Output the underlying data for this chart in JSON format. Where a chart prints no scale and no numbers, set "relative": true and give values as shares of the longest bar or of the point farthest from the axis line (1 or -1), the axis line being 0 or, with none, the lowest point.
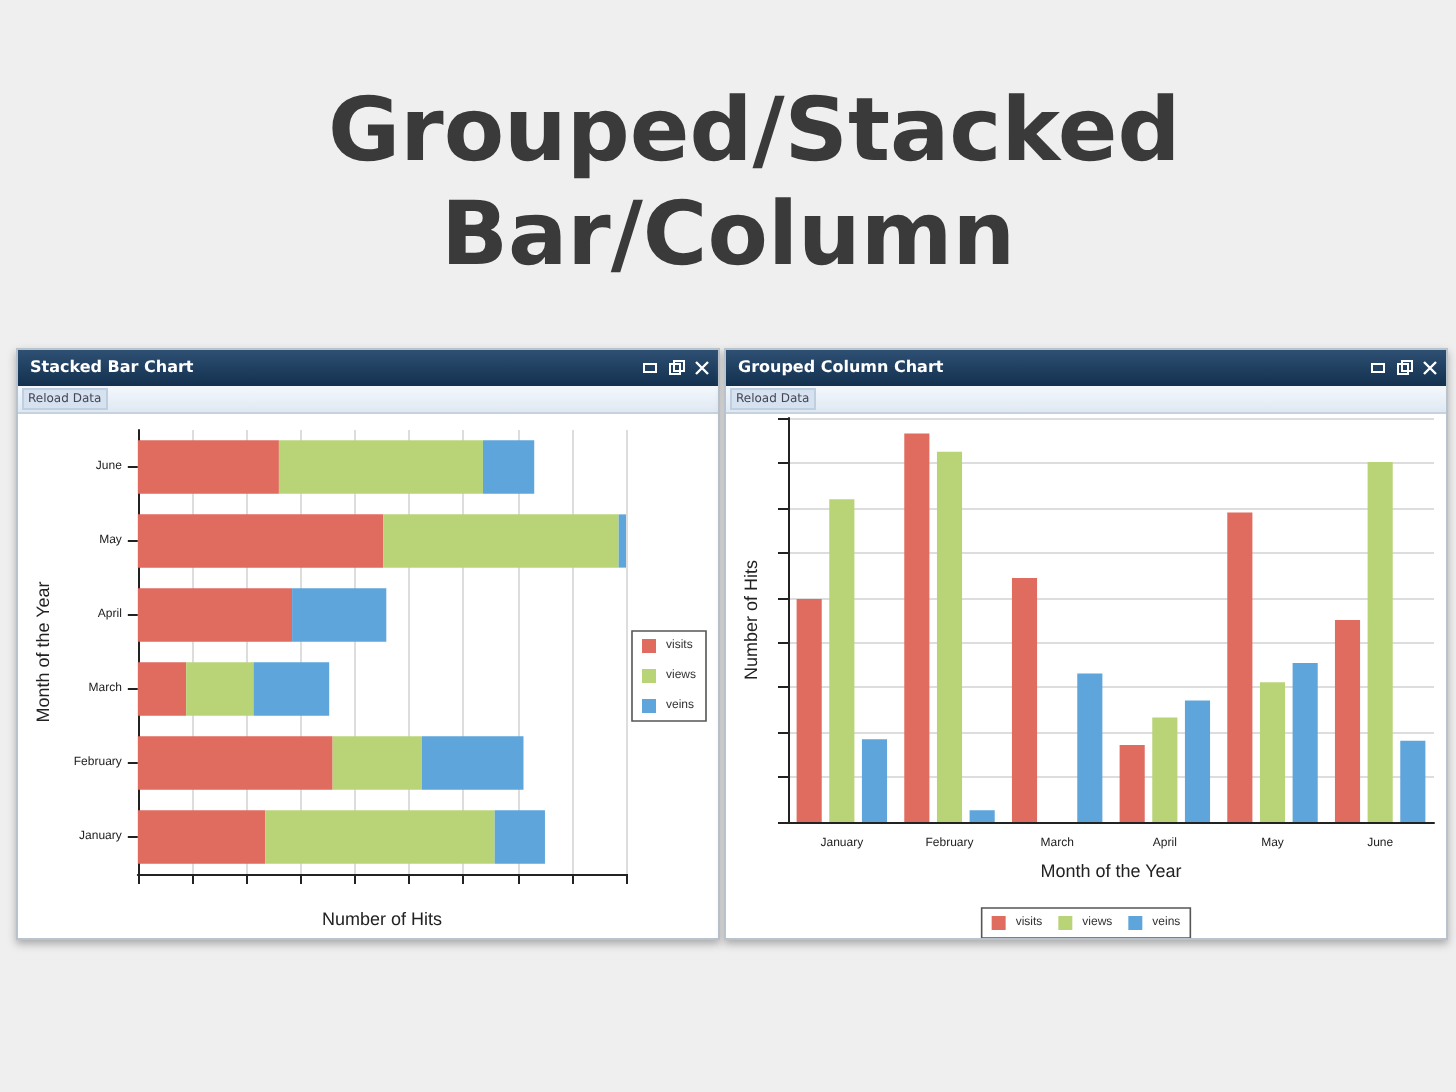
{
  "chart_data": [
    {
      "type": "bar",
      "orientation": "horizontal",
      "stacked": true,
      "relative": true,
      "title": "Stacked Bar Chart",
      "xlabel": "Number of Hits",
      "ylabel": "Month of the Year",
      "annotations": [
        "Reload Data",
        "Grouped/Stacked Bar/Column"
      ],
      "categories": [
        "June",
        "May",
        "April",
        "March",
        "February",
        "January"
      ],
      "series": [
        {
          "name": "visits",
          "color": "#e06b5f",
          "values": [
            0.289,
            0.503,
            0.316,
            0.099,
            0.399,
            0.261
          ]
        },
        {
          "name": "views",
          "color": "#b8d477",
          "values": [
            0.418,
            0.482,
            0,
            0.138,
            0.183,
            0.47
          ]
        },
        {
          "name": "veins",
          "color": "#5ea5db",
          "values": [
            0.105,
            0.015,
            0.193,
            0.155,
            0.208,
            0.103
          ]
        }
      ],
      "grid": "x",
      "legend": "right"
    },
    {
      "type": "bar",
      "relative": true,
      "title": "Grouped Column Chart",
      "xlabel": "Month of the Year",
      "ylabel": "Number of Hits",
      "annotations": [
        "Reload Data"
      ],
      "categories": [
        "January",
        "February",
        "March",
        "April",
        "May",
        "June"
      ],
      "series": [
        {
          "name": "visits",
          "color": "#e06b5f",
          "values": [
            0.574,
            1,
            0.628,
            0.198,
            0.797,
            0.52
          ]
        },
        {
          "name": "views",
          "color": "#b8d477",
          "values": [
            0.831,
            0.953,
            0,
            0.269,
            0.36,
            0.927
          ]
        },
        {
          "name": "veins",
          "color": "#5ea5db",
          "values": [
            0.213,
            0.03,
            0.382,
            0.313,
            0.409,
            0.209
          ]
        }
      ],
      "grid": "y",
      "legend": "bottom"
    }
  ]
}
